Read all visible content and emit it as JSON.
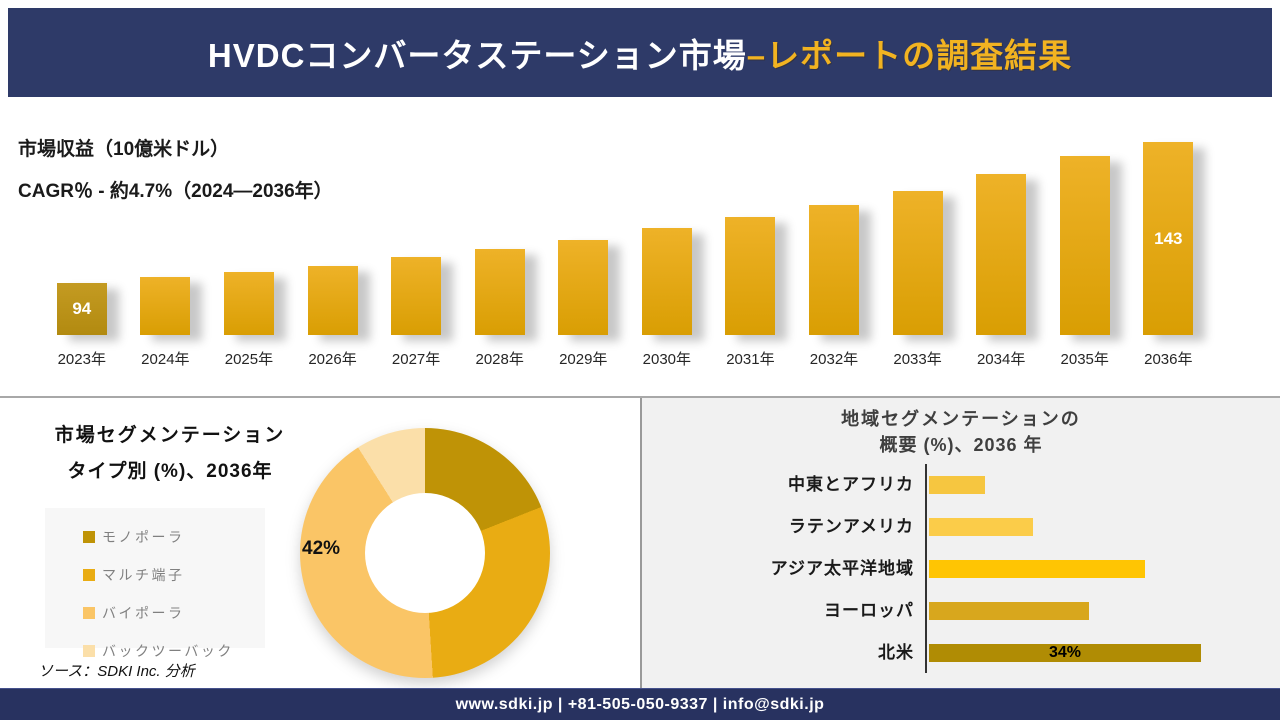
{
  "page": {
    "header": {
      "title_main": "HVDCコンバータステーション市場",
      "title_accent": "–レポートの調査結果"
    },
    "footer": {
      "text": "www.sdki.jp | +81-505-050-9337 | info@sdki.jp"
    },
    "source_note": "ソース：SDKI Inc. 分析"
  },
  "colors": {
    "navy_header": "#2e3a68",
    "navy_footer": "#283260",
    "gold_accent": "#f2b321",
    "revenue_bar_first": "#bd9420",
    "revenue_bar": "#e4a80d",
    "right_panel_bg": "#f1f1f1",
    "legend_bg": "#f7f7f7",
    "divider_gray": "#a8a8a8"
  },
  "chart_data": [
    {
      "type": "bar",
      "orientation": "vertical",
      "title": "市場収益（10億米ドル）",
      "subtitle": "CAGR％ - 約4.7%（2024―2036年）",
      "categories": [
        "2023年",
        "2024年",
        "2025年",
        "2026年",
        "2027年",
        "2028年",
        "2029年",
        "2030年",
        "2031年",
        "2032年",
        "2033年",
        "2034年",
        "2035年",
        "2036年"
      ],
      "values": [
        94,
        96,
        98,
        100,
        103,
        106,
        109,
        113,
        117,
        121,
        126,
        132,
        138,
        143
      ],
      "bar_labels": [
        "94",
        "",
        "",
        "",
        "",
        "",
        "",
        "",
        "",
        "",
        "",
        "",
        "",
        "143"
      ],
      "ylabel": "市場収益（10億米ドル）",
      "grid": false,
      "colors": {
        "first_bar": "#bd9420",
        "bars": "#e4a80d"
      }
    },
    {
      "type": "pie",
      "style": "donut",
      "title_line1": "市場セグメンテーション",
      "title_line2": "タイプ別 (%)、2036年",
      "labels": [
        "モノポーラ",
        "マルチ端子",
        "バイポーラ",
        "バックツーバック"
      ],
      "values": [
        19,
        30,
        42,
        9
      ],
      "colors": [
        "#bf9306",
        "#e9ac13",
        "#fac566",
        "#fbdfa9"
      ],
      "data_label": "42%",
      "data_label_segment": "バイポーラ",
      "legend_position": "left"
    },
    {
      "type": "bar",
      "orientation": "horizontal",
      "title_line1": "地域セグメンテーションの",
      "title_line2": "概要 (%)、2036 年",
      "categories": [
        "中東とアフリカ",
        "ラテンアメリカ",
        "アジア太平洋地域",
        "ヨーロッパ",
        "北米"
      ],
      "values": [
        7,
        13,
        27,
        20,
        34
      ],
      "colors": [
        "#f6c640",
        "#fbcc49",
        "#ffc503",
        "#d8a71d",
        "#b08c04"
      ],
      "data_label": "34%",
      "data_label_index": 4
    }
  ]
}
